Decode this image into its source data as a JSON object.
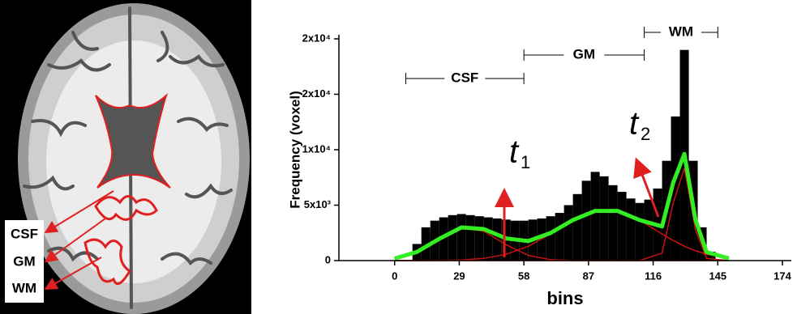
{
  "figure": {
    "labels": [
      "CSF",
      "GM",
      "WM"
    ]
  },
  "chart_data": {
    "type": "histogram",
    "y_label": "Frequency (voxel)",
    "x_label": "bins",
    "bins": [
      8,
      12,
      16,
      20,
      24,
      28,
      32,
      36,
      40,
      44,
      48,
      52,
      56,
      60,
      64,
      68,
      72,
      76,
      80,
      84,
      88,
      92,
      96,
      100,
      104,
      108,
      112,
      116,
      120,
      124,
      128,
      132,
      136,
      140,
      144
    ],
    "values": [
      1500,
      3000,
      3600,
      3900,
      4100,
      4200,
      4100,
      4000,
      3900,
      3800,
      3700,
      3600,
      3600,
      3700,
      3800,
      4000,
      4300,
      5000,
      6000,
      7200,
      8000,
      7600,
      6800,
      6200,
      5600,
      5200,
      5500,
      6500,
      9000,
      13000,
      19000,
      9000,
      3000,
      800
    ],
    "color": "#000000",
    "curves": {
      "x": [
        0,
        10,
        20,
        30,
        40,
        50,
        60,
        70,
        80,
        90,
        100,
        110,
        120,
        125,
        130,
        135,
        140,
        150
      ],
      "series": [
        {
          "color": "#cc1111",
          "values": [
            190,
            780,
            1950,
            2930,
            2650,
            1430,
            470,
            90,
            10,
            0,
            0,
            0,
            0,
            0,
            0,
            0,
            0,
            0
          ]
        },
        {
          "color": "#cc1111",
          "values": [
            0,
            0,
            14,
            60,
            200,
            570,
            1290,
            2400,
            3650,
            4480,
            4480,
            3650,
            2400,
            1820,
            1290,
            880,
            570,
            200
          ]
        },
        {
          "color": "#cc1111",
          "values": [
            0,
            0,
            0,
            0,
            0,
            0,
            0,
            0,
            0,
            0,
            0,
            0,
            680,
            5200,
            8330,
            2790,
            200,
            0
          ]
        },
        {
          "color": "#33ee22",
          "values": [
            190,
            780,
            1960,
            2990,
            2850,
            2000,
            1760,
            2490,
            3660,
            4480,
            4480,
            3650,
            3080,
            7020,
            9620,
            3670,
            770,
            200
          ]
        }
      ]
    },
    "xlim": [
      -25,
      178
    ],
    "xticks": [
      0,
      29,
      58,
      87,
      116,
      145,
      174
    ],
    "ylim": [
      0,
      20000
    ],
    "yticks": [
      0,
      {
        "value": 5000,
        "label": "5x10³"
      },
      {
        "value": 10000,
        "label": "1x10⁴"
      },
      {
        "value": 15000,
        "label": "2x10⁴"
      },
      {
        "value": 20000,
        "label": "2x10⁴"
      }
    ],
    "annotations": [
      {
        "text": "CSF",
        "from": 5,
        "to": 58
      },
      {
        "text": "GM",
        "from": 58,
        "to": 112
      },
      {
        "text": "WM",
        "from": 112,
        "to": 145
      }
    ],
    "thresholds": [
      {
        "text": "t",
        "sub": "1"
      },
      {
        "text": "t",
        "sub": "2"
      }
    ]
  }
}
